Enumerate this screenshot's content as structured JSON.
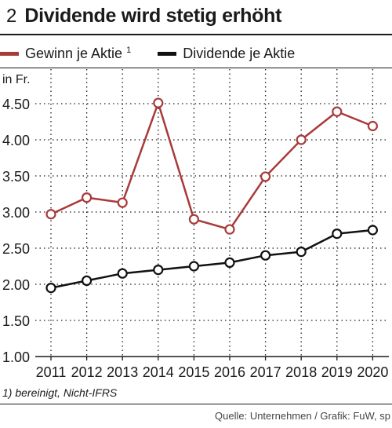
{
  "header": {
    "number": "2",
    "title": "Dividende wird stetig erhöht"
  },
  "footnote": "1) bereinigt, Nicht-IFRS",
  "source": "Quelle: Unternehmen / Grafik: FuW, sp",
  "chart_data": {
    "type": "line",
    "ylabel": "in Fr.",
    "ylim": [
      1.0,
      4.5
    ],
    "yticks": [
      "1.00",
      "1.50",
      "2.00",
      "2.50",
      "3.00",
      "3.50",
      "4.00",
      "4.50"
    ],
    "x": [
      "2011",
      "2012",
      "2013",
      "2014",
      "2015",
      "2016",
      "2017",
      "2018",
      "2019",
      "2020"
    ],
    "grid": true,
    "legend_position": "top",
    "series": [
      {
        "name": "Gewinn je Aktie",
        "footnote_mark": "1",
        "color": "#a83a3a",
        "values": [
          2.97,
          3.2,
          3.13,
          4.51,
          2.9,
          2.76,
          3.49,
          4.0,
          4.39,
          4.19
        ]
      },
      {
        "name": "Dividende je Aktie",
        "color": "#111111",
        "values": [
          1.95,
          2.05,
          2.15,
          2.2,
          2.25,
          2.3,
          2.4,
          2.45,
          2.7,
          2.75
        ]
      }
    ]
  }
}
